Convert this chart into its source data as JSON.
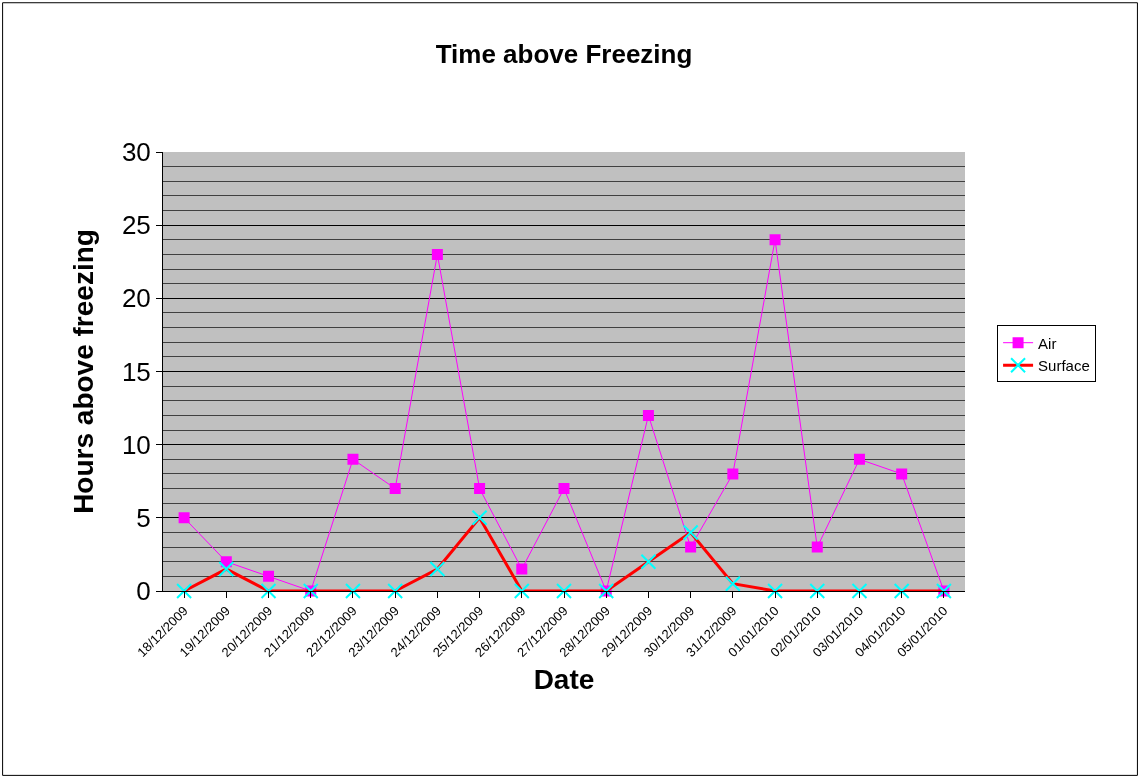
{
  "chart_data": {
    "type": "line",
    "title": "Time above Freezing",
    "xlabel": "Date",
    "ylabel": "Hours above freezing",
    "categories": [
      "18/12/2009",
      "19/12/2009",
      "20/12/2009",
      "21/12/2009",
      "22/12/2009",
      "23/12/2009",
      "24/12/2009",
      "25/12/2009",
      "26/12/2009",
      "27/12/2009",
      "28/12/2009",
      "29/12/2009",
      "30/12/2009",
      "31/12/2009",
      "01/01/2010",
      "02/01/2010",
      "03/01/2010",
      "04/01/2010",
      "05/01/2010"
    ],
    "series": [
      {
        "name": "Air",
        "color": "#ff00ff",
        "marker": "square",
        "values": [
          5,
          2,
          1,
          0,
          9,
          7,
          23,
          7,
          1.5,
          7,
          0,
          12,
          3,
          8,
          24,
          3,
          9,
          8,
          0
        ]
      },
      {
        "name": "Surface",
        "color": "#ff0000",
        "marker": "cross",
        "colors": [
          "#00ffff",
          "#00ffff",
          "#00ffff",
          "#00ffff",
          "#00ffff",
          "#00ffff",
          "#00ffff",
          "#00ffff",
          "#00ffff",
          "#00ffff",
          "#00ffff",
          "#00ffff",
          "#00ffff",
          "#00ffff",
          "#00ffff",
          "#00ffff",
          "#00ffff",
          "#00ffff",
          "#00ffff"
        ],
        "values": [
          0,
          1.5,
          0,
          0,
          0,
          0,
          1.5,
          5,
          0,
          0,
          0,
          2,
          4,
          0.5,
          0,
          0,
          0,
          0,
          0
        ]
      }
    ],
    "ylim": [
      0,
      30
    ],
    "yticks": [
      0,
      5,
      10,
      15,
      20,
      25,
      30
    ],
    "grid": "y",
    "legend": "right",
    "line_style": "solid"
  }
}
